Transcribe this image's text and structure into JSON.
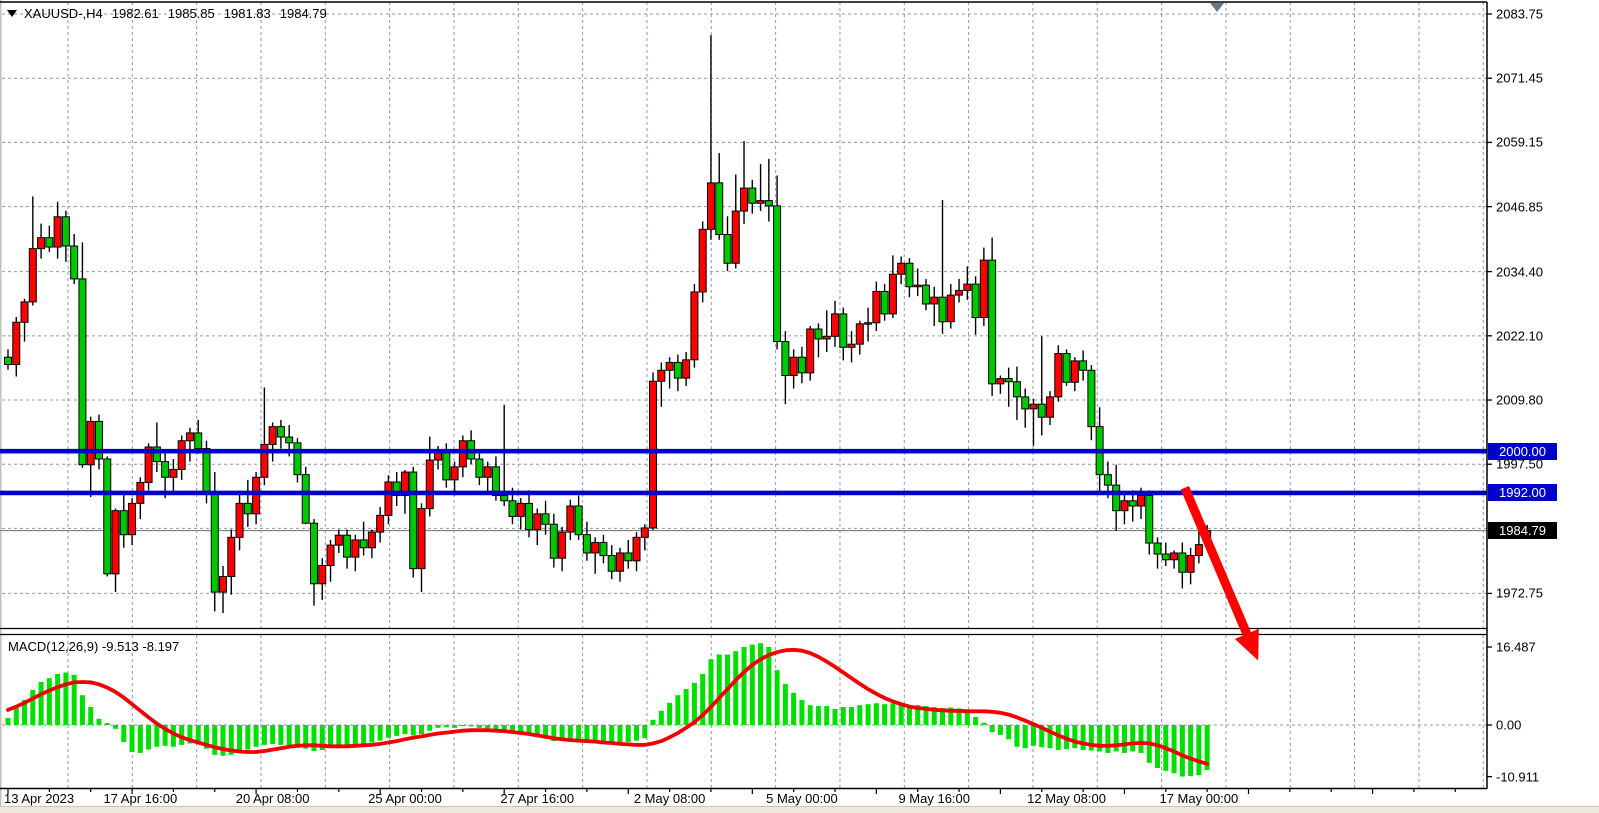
{
  "header": {
    "symbol": "XAUUSD-,H4",
    "open": "1982.61",
    "high": "1985.85",
    "low": "1981.83",
    "close": "1984.79"
  },
  "colors": {
    "bull": "#ff0000",
    "bear": "#00c800",
    "macd_bar": "#00e000",
    "signal_line": "#f00000",
    "level_blue": "#0000cc",
    "grid": "#8c99aa",
    "current_line": "#808080",
    "badge_black": "#000000",
    "arrow": "#ff0000",
    "shift_marker": "#667788"
  },
  "time_axis": {
    "labels": [
      "13 Apr 2023",
      "17 Apr 16:00",
      "20 Apr 08:00",
      "25 Apr 00:00",
      "27 Apr 16:00",
      "2 May 08:00",
      "5 May 00:00",
      "9 May 16:00",
      "12 May 08:00",
      "17 May 00:00"
    ],
    "label_every_n_candles": 16
  },
  "chart_data": [
    {
      "type": "candlestick",
      "title": "XAUUSD-,H4",
      "ylabel": "price",
      "ylim": [
        1965.7,
        2086.1
      ],
      "y_axis_labels": [
        "2083.75",
        "2071.45",
        "2059.15",
        "2046.85",
        "2034.40",
        "2022.10",
        "2009.80",
        "1997.50",
        "1972.75"
      ],
      "y_axis_values": [
        2083.75,
        2071.45,
        2059.15,
        2046.85,
        2034.4,
        2022.1,
        2009.8,
        1997.5,
        1972.75
      ],
      "hidden_gridline_value": 1985.2,
      "grid": true,
      "horizontal_levels": [
        {
          "value": 2000.0,
          "label": "2000.00"
        },
        {
          "value": 1992.0,
          "label": "1992.00"
        }
      ],
      "current_price": {
        "value": 1984.79,
        "label": "1984.79"
      },
      "trend_arrow": {
        "from": {
          "candle": 142.3,
          "price": 1993.0
        },
        "to": {
          "candle": 149.8,
          "price": 1965.0
        }
      },
      "shift_marker_candle": 146.2,
      "candles": [
        [
          2018.0,
          2019.5,
          2015.6,
          2016.6
        ],
        [
          2016.6,
          2025.7,
          2014.3,
          2024.7
        ],
        [
          2024.7,
          2029.2,
          2021.0,
          2028.6
        ],
        [
          2028.6,
          2048.8,
          2027.9,
          2038.8
        ],
        [
          2038.8,
          2043.6,
          2036.9,
          2040.9
        ],
        [
          2040.9,
          2043.2,
          2038.2,
          2039.1
        ],
        [
          2039.1,
          2047.8,
          2036.9,
          2044.9
        ],
        [
          2044.9,
          2046.1,
          2036.3,
          2039.3
        ],
        [
          2039.3,
          2041.6,
          2032.0,
          2033.0
        ],
        [
          2033.0,
          2040.0,
          1996.8,
          1997.4
        ],
        [
          1997.4,
          2006.6,
          1991.2,
          2005.7
        ],
        [
          2005.7,
          2007.0,
          1996.5,
          1998.5
        ],
        [
          1998.5,
          1999.0,
          1976.0,
          1976.5
        ],
        [
          1976.5,
          1989.0,
          1973.0,
          1988.6
        ],
        [
          1988.6,
          1992.0,
          1981.5,
          1984.0
        ],
        [
          1984.0,
          1991.0,
          1982.0,
          1990.0
        ],
        [
          1990.0,
          1995.0,
          1987.0,
          1994.0
        ],
        [
          1994.0,
          2001.5,
          1992.5,
          2000.8
        ],
        [
          2000.8,
          2005.5,
          1996.0,
          1998.0
        ],
        [
          1998.0,
          2000.0,
          1991.0,
          1995.0
        ],
        [
          1995.0,
          1998.5,
          1992.0,
          1996.5
        ],
        [
          1996.5,
          2003.0,
          1994.5,
          2002.0
        ],
        [
          2002.0,
          2004.5,
          1998.0,
          2003.5
        ],
        [
          2003.5,
          2006.0,
          1999.5,
          2000.5
        ],
        [
          2000.5,
          2002.0,
          1990.0,
          1992.0
        ],
        [
          1992.0,
          1996.0,
          1969.3,
          1973.0
        ],
        [
          1973.0,
          1978.0,
          1969.0,
          1976.0
        ],
        [
          1976.0,
          1985.0,
          1972.5,
          1983.5
        ],
        [
          1983.5,
          1992.0,
          1981.0,
          1990.0
        ],
        [
          1990.0,
          1994.5,
          1985.5,
          1988.0
        ],
        [
          1988.0,
          1996.0,
          1986.0,
          1995.0
        ],
        [
          1995.0,
          2012.2,
          1993.5,
          2001.3
        ],
        [
          2001.3,
          2005.5,
          1998.0,
          2004.7
        ],
        [
          2004.7,
          2006.0,
          2000.5,
          2002.7
        ],
        [
          2002.7,
          2005.0,
          1999.0,
          2001.6
        ],
        [
          2001.6,
          2002.5,
          1994.0,
          1995.5
        ],
        [
          1995.5,
          1997.0,
          1986.0,
          1986.2
        ],
        [
          1986.2,
          1987.0,
          1970.4,
          1974.6
        ],
        [
          1974.6,
          1979.5,
          1971.5,
          1978.1
        ],
        [
          1978.1,
          1983.0,
          1975.0,
          1982.0
        ],
        [
          1982.0,
          1985.0,
          1980.5,
          1983.9
        ],
        [
          1983.9,
          1985.0,
          1977.5,
          1979.7
        ],
        [
          1979.7,
          1984.0,
          1977.0,
          1983.0
        ],
        [
          1983.0,
          1986.5,
          1980.0,
          1981.5
        ],
        [
          1981.5,
          1985.0,
          1979.5,
          1984.5
        ],
        [
          1984.5,
          1989.3,
          1982.5,
          1987.7
        ],
        [
          1987.7,
          1995.4,
          1986.0,
          1994.1
        ],
        [
          1994.1,
          1996.0,
          1989.5,
          1991.5
        ],
        [
          1991.5,
          1996.4,
          1988.0,
          1996.0
        ],
        [
          1996.0,
          1997.0,
          1975.8,
          1977.5
        ],
        [
          1977.5,
          1990.0,
          1973.0,
          1989.0
        ],
        [
          1989.0,
          2002.8,
          1987.5,
          1998.3
        ],
        [
          1998.3,
          2001.0,
          1996.5,
          2000.0
        ],
        [
          2000.0,
          2001.5,
          1993.0,
          1994.5
        ],
        [
          1994.5,
          1998.0,
          1991.5,
          1997.0
        ],
        [
          1997.0,
          2003.0,
          1995.0,
          2002.0
        ],
        [
          2002.0,
          2004.0,
          1997.5,
          1998.5
        ],
        [
          1998.5,
          2000.0,
          1993.5,
          1995.0
        ],
        [
          1995.0,
          1998.0,
          1992.0,
          1997.0
        ],
        [
          1997.0,
          1999.0,
          1990.5,
          1991.5
        ],
        [
          1991.5,
          2008.9,
          1989.5,
          1990.5
        ],
        [
          1990.5,
          1993.0,
          1986.0,
          1987.5
        ],
        [
          1987.5,
          1991.0,
          1985.0,
          1990.0
        ],
        [
          1990.0,
          1992.5,
          1983.5,
          1985.0
        ],
        [
          1985.0,
          1989.0,
          1982.0,
          1988.0
        ],
        [
          1988.0,
          1990.5,
          1984.0,
          1986.0
        ],
        [
          1986.0,
          1988.0,
          1977.7,
          1979.5
        ],
        [
          1979.5,
          1985.5,
          1977.0,
          1984.5
        ],
        [
          1984.5,
          1990.7,
          1983.0,
          1989.5
        ],
        [
          1989.5,
          1991.5,
          1983.0,
          1984.0
        ],
        [
          1984.0,
          1986.5,
          1979.0,
          1980.5
        ],
        [
          1980.5,
          1983.5,
          1976.5,
          1982.5
        ],
        [
          1982.5,
          1984.0,
          1978.5,
          1980.0
        ],
        [
          1980.0,
          1982.0,
          1975.5,
          1977.0
        ],
        [
          1977.0,
          1981.5,
          1975.0,
          1980.5
        ],
        [
          1980.5,
          1983.0,
          1977.5,
          1979.0
        ],
        [
          1979.0,
          1984.5,
          1977.0,
          1983.5
        ],
        [
          1983.5,
          1986.0,
          1981.0,
          1985.3
        ],
        [
          1985.3,
          2015.1,
          1984.9,
          2013.4
        ],
        [
          2013.4,
          2017.0,
          2008.5,
          2015.5
        ],
        [
          2015.5,
          2018.0,
          2012.0,
          2017.0
        ],
        [
          2017.0,
          2018.5,
          2011.5,
          2014.0
        ],
        [
          2014.0,
          2019.0,
          2012.5,
          2017.5
        ],
        [
          2017.5,
          2032.0,
          2016.0,
          2030.5
        ],
        [
          2030.5,
          2044.0,
          2028.5,
          2042.5
        ],
        [
          2042.5,
          2079.7,
          2040.5,
          2051.4
        ],
        [
          2051.4,
          2057.1,
          2040.5,
          2041.5
        ],
        [
          2041.5,
          2045.0,
          2034.5,
          2036.0
        ],
        [
          2036.0,
          2053.0,
          2035.0,
          2046.0
        ],
        [
          2046.0,
          2059.4,
          2043.5,
          2050.4
        ],
        [
          2050.4,
          2052.0,
          2045.5,
          2047.5
        ],
        [
          2047.5,
          2055.0,
          2046.0,
          2048.0
        ],
        [
          2048.0,
          2056.0,
          2044.0,
          2047.0
        ],
        [
          2047.0,
          2052.8,
          2019.5,
          2021.0
        ],
        [
          2021.0,
          2023.0,
          2009.0,
          2014.5
        ],
        [
          2014.5,
          2019.5,
          2012.0,
          2018.0
        ],
        [
          2018.0,
          2020.0,
          2013.0,
          2015.0
        ],
        [
          2015.0,
          2024.0,
          2013.5,
          2023.4
        ],
        [
          2023.4,
          2024.5,
          2018.0,
          2021.5
        ],
        [
          2021.5,
          2027.0,
          2019.0,
          2022.0
        ],
        [
          2022.0,
          2028.8,
          2020.0,
          2026.3
        ],
        [
          2026.3,
          2027.5,
          2017.4,
          2019.9
        ],
        [
          2019.9,
          2023.0,
          2017.0,
          2020.5
        ],
        [
          2020.5,
          2025.0,
          2018.5,
          2024.4
        ],
        [
          2024.4,
          2027.5,
          2021.0,
          2024.6
        ],
        [
          2024.6,
          2032.5,
          2023.0,
          2030.6
        ],
        [
          2030.6,
          2032.0,
          2025.0,
          2026.3
        ],
        [
          2026.3,
          2037.5,
          2025.5,
          2033.9
        ],
        [
          2033.9,
          2037.3,
          2032.0,
          2036.0
        ],
        [
          2036.0,
          2037.0,
          2029.5,
          2031.5
        ],
        [
          2031.5,
          2035.0,
          2029.7,
          2031.8
        ],
        [
          2031.8,
          2033.0,
          2027.0,
          2028.2
        ],
        [
          2028.2,
          2031.5,
          2024.0,
          2029.5
        ],
        [
          2029.5,
          2048.1,
          2022.5,
          2024.8
        ],
        [
          2024.8,
          2032.0,
          2023.5,
          2029.9
        ],
        [
          2029.9,
          2033.0,
          2028.5,
          2030.8
        ],
        [
          2030.8,
          2035.4,
          2029.0,
          2032.0
        ],
        [
          2032.0,
          2033.5,
          2022.3,
          2025.6
        ],
        [
          2025.6,
          2039.0,
          2024.0,
          2036.6
        ],
        [
          2036.6,
          2040.9,
          2010.6,
          2012.9
        ],
        [
          2012.9,
          2014.5,
          2011.0,
          2013.9
        ],
        [
          2013.9,
          2016.0,
          2008.5,
          2013.3
        ],
        [
          2013.3,
          2016.2,
          2006.0,
          2010.4
        ],
        [
          2010.4,
          2012.0,
          2004.5,
          2008.1
        ],
        [
          2008.1,
          2010.0,
          2001.0,
          2009.0
        ],
        [
          2009.0,
          2022.0,
          2003.0,
          2006.5
        ],
        [
          2006.5,
          2011.5,
          2005.0,
          2010.4
        ],
        [
          2010.4,
          2020.3,
          2009.5,
          2018.7
        ],
        [
          2018.7,
          2019.5,
          2012.5,
          2013.2
        ],
        [
          2013.2,
          2018.0,
          2011.5,
          2017.3
        ],
        [
          2017.3,
          2019.3,
          2013.5,
          2015.5
        ],
        [
          2015.5,
          2016.5,
          2002.1,
          2004.7
        ],
        [
          2004.7,
          2008.4,
          1992.2,
          1995.5
        ],
        [
          1995.5,
          1998.0,
          1991.0,
          1993.5
        ],
        [
          1993.5,
          1997.4,
          1984.7,
          1988.6
        ],
        [
          1988.6,
          1992.0,
          1986.0,
          1990.5
        ],
        [
          1990.5,
          1992.5,
          1986.5,
          1989.5
        ],
        [
          1989.5,
          1993.0,
          1987.0,
          1991.5
        ],
        [
          1991.5,
          1992.5,
          1980.2,
          1982.4
        ],
        [
          1982.4,
          1983.5,
          1977.5,
          1980.3
        ],
        [
          1980.3,
          1982.5,
          1978.0,
          1979.2
        ],
        [
          1979.2,
          1981.0,
          1977.5,
          1980.5
        ],
        [
          1980.5,
          1982.5,
          1973.7,
          1976.8
        ],
        [
          1976.8,
          1981.5,
          1974.5,
          1980.0
        ],
        [
          1980.0,
          1984.9,
          1978.5,
          1982.1
        ],
        [
          1982.61,
          1985.85,
          1981.83,
          1984.79
        ]
      ]
    },
    {
      "type": "macd",
      "label": "MACD(12,26,9) -9.513 -8.197",
      "params": "12,26,9",
      "main_value": -9.513,
      "signal_value": -8.197,
      "y_axis_labels": [
        "16.487",
        "0.00",
        "-10.911"
      ],
      "y_axis_values": [
        16.487,
        0,
        -10.911
      ],
      "histogram": [
        1.5,
        3.6,
        5.3,
        7.4,
        9.1,
        9.9,
        10.8,
        11.1,
        10.6,
        6.3,
        3.8,
        1.3,
        0.4,
        -0.8,
        -3.6,
        -5.7,
        -5.9,
        -5.2,
        -4.6,
        -4.4,
        -4.6,
        -4.2,
        -3.9,
        -4.1,
        -5.0,
        -6.3,
        -6.5,
        -6.3,
        -5.8,
        -5.2,
        -4.6,
        -4.2,
        -4.0,
        -4.2,
        -4.4,
        -4.8,
        -5.0,
        -5.5,
        -5.3,
        -4.9,
        -4.6,
        -4.4,
        -4.2,
        -4.0,
        -3.7,
        -3.3,
        -2.7,
        -2.3,
        -1.9,
        -2.2,
        -1.9,
        -1.2,
        -0.6,
        -0.5,
        -0.6,
        -0.2,
        -0.3,
        -0.6,
        -0.7,
        -1.0,
        -1.2,
        -1.6,
        -1.8,
        -2.2,
        -2.6,
        -2.9,
        -3.4,
        -3.3,
        -3.0,
        -3.1,
        -3.4,
        -3.5,
        -3.7,
        -3.9,
        -3.8,
        -3.6,
        -3.3,
        -2.8,
        1.1,
        3.0,
        4.7,
        6.3,
        7.6,
        8.9,
        10.8,
        13.9,
        14.9,
        14.9,
        15.6,
        16.5,
        17.0,
        17.3,
        16.5,
        11.6,
        8.7,
        6.8,
        5.3,
        4.2,
        4.0,
        4.0,
        3.4,
        3.8,
        3.8,
        4.2,
        4.4,
        4.6,
        4.4,
        4.6,
        4.4,
        4.2,
        4.2,
        4.0,
        3.8,
        3.6,
        3.7,
        3.5,
        2.7,
        1.7,
        0.5,
        -1.5,
        -2.1,
        -3.0,
        -4.6,
        -4.9,
        -4.4,
        -4.7,
        -4.9,
        -5.3,
        -5.1,
        -4.9,
        -5.3,
        -5.4,
        -5.6,
        -5.9,
        -5.6,
        -5.9,
        -5.6,
        -5.9,
        -8.0,
        -9.1,
        -9.7,
        -10.2,
        -10.9,
        -10.8,
        -10.6,
        -9.513
      ],
      "signal": [
        3.2,
        3.9,
        4.7,
        5.6,
        6.5,
        7.3,
        8.0,
        8.6,
        9.0,
        9.1,
        9.0,
        8.6,
        7.9,
        7.0,
        5.8,
        4.4,
        3.0,
        1.6,
        0.3,
        -0.8,
        -1.8,
        -2.6,
        -3.2,
        -3.7,
        -4.2,
        -4.7,
        -5.1,
        -5.4,
        -5.6,
        -5.7,
        -5.7,
        -5.5,
        -5.2,
        -4.9,
        -4.6,
        -4.4,
        -4.3,
        -4.3,
        -4.4,
        -4.5,
        -4.5,
        -4.5,
        -4.4,
        -4.3,
        -4.2,
        -4.0,
        -3.7,
        -3.4,
        -3.0,
        -2.7,
        -2.4,
        -2.1,
        -1.8,
        -1.6,
        -1.4,
        -1.2,
        -1.1,
        -1.1,
        -1.1,
        -1.2,
        -1.3,
        -1.5,
        -1.7,
        -1.9,
        -2.2,
        -2.5,
        -2.8,
        -3.0,
        -3.2,
        -3.3,
        -3.4,
        -3.5,
        -3.7,
        -3.8,
        -4.0,
        -4.1,
        -4.2,
        -4.2,
        -3.9,
        -3.4,
        -2.6,
        -1.7,
        -0.6,
        0.6,
        2.1,
        3.8,
        5.7,
        7.6,
        9.5,
        11.2,
        12.7,
        13.9,
        14.8,
        15.4,
        15.8,
        15.9,
        15.7,
        15.2,
        14.4,
        13.4,
        12.3,
        11.1,
        9.9,
        8.7,
        7.6,
        6.6,
        5.7,
        5.0,
        4.4,
        3.9,
        3.6,
        3.4,
        3.2,
        3.1,
        3.0,
        3.0,
        2.9,
        2.9,
        2.9,
        2.8,
        2.6,
        2.2,
        1.6,
        0.9,
        0.2,
        -0.6,
        -1.4,
        -2.2,
        -2.9,
        -3.5,
        -3.9,
        -4.2,
        -4.4,
        -4.4,
        -4.3,
        -4.1,
        -3.9,
        -3.8,
        -3.9,
        -4.3,
        -4.9,
        -5.6,
        -6.4,
        -7.1,
        -7.7,
        -8.197
      ]
    }
  ]
}
